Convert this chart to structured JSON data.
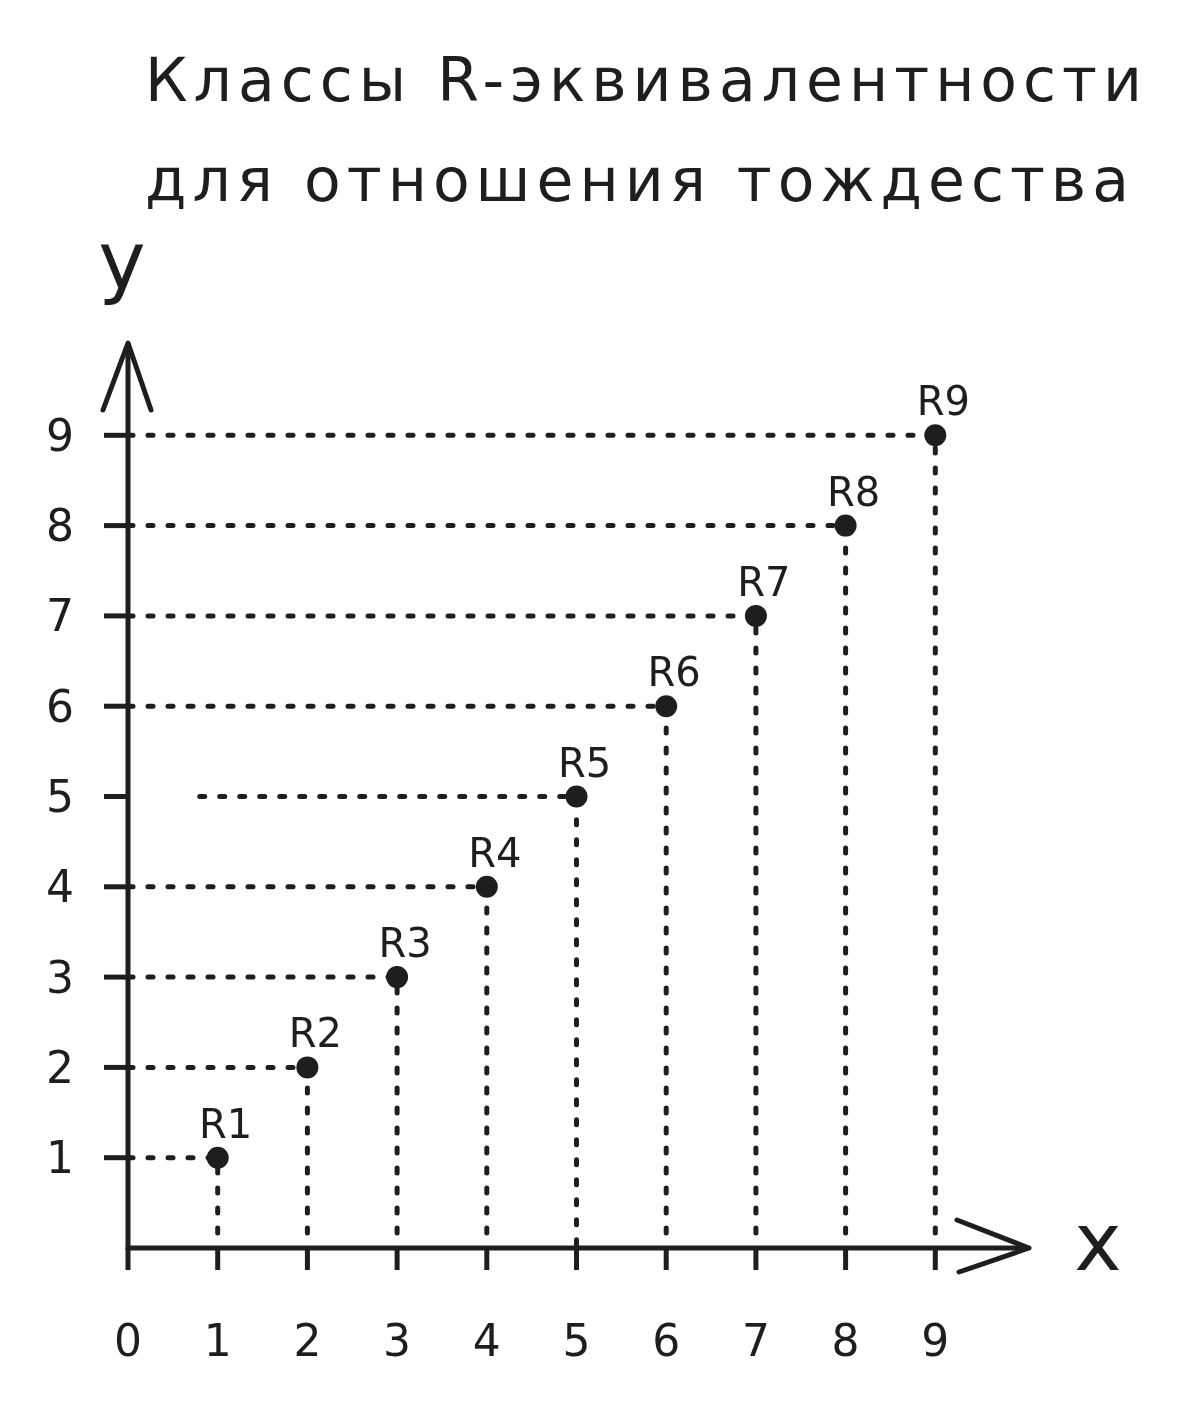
{
  "chart_data": {
    "type": "scatter",
    "title": "Классы R-эквивалентности для отношения тождества",
    "xlabel": "x",
    "ylabel": "y",
    "xlim": [
      0,
      10
    ],
    "ylim": [
      0,
      10
    ],
    "xticks": [
      0,
      1,
      2,
      3,
      4,
      5,
      6,
      7,
      8,
      9
    ],
    "yticks": [
      1,
      2,
      3,
      4,
      5,
      6,
      7,
      8,
      9
    ],
    "marker": "circle",
    "line_style": "dotted",
    "series": [
      {
        "color": "#1e1e1e",
        "x": [
          1,
          2,
          3,
          4,
          5,
          6,
          7,
          8,
          9
        ],
        "values": [
          1,
          2,
          3,
          4,
          5,
          6,
          7,
          8,
          9
        ]
      },
      {
        "type": "line",
        "marker": "none",
        "color": "#1e1e1e",
        "x": [
          0,
          1,
          1
        ],
        "values": [
          1,
          1,
          0
        ]
      },
      {
        "type": "line",
        "marker": "none",
        "color": "#1e1e1e",
        "x": [
          0,
          2,
          2
        ],
        "values": [
          2,
          2,
          0
        ]
      },
      {
        "type": "line",
        "marker": "none",
        "color": "#1e1e1e",
        "x": [
          0,
          3,
          3
        ],
        "values": [
          3,
          3,
          0
        ]
      },
      {
        "type": "line",
        "marker": "none",
        "color": "#1e1e1e",
        "x": [
          0,
          4,
          4
        ],
        "values": [
          4,
          4,
          0
        ]
      },
      {
        "type": "line",
        "marker": "none",
        "color": "#1e1e1e",
        "x": [
          0.8,
          5,
          5
        ],
        "values": [
          5,
          5,
          0
        ]
      },
      {
        "type": "line",
        "marker": "none",
        "color": "#1e1e1e",
        "x": [
          0,
          6,
          6
        ],
        "values": [
          6,
          6,
          0
        ]
      },
      {
        "type": "line",
        "marker": "none",
        "color": "#1e1e1e",
        "x": [
          0,
          7,
          7
        ],
        "values": [
          7,
          7,
          0
        ]
      },
      {
        "type": "line",
        "marker": "none",
        "color": "#1e1e1e",
        "x": [
          0,
          8,
          8
        ],
        "values": [
          8,
          8,
          0
        ]
      },
      {
        "type": "line",
        "marker": "none",
        "color": "#1e1e1e",
        "x": [
          0,
          9,
          9
        ],
        "values": [
          9,
          9,
          0
        ]
      }
    ],
    "annotations": [
      {
        "text": "R1",
        "x": 1,
        "y": 1
      },
      {
        "text": "R2",
        "x": 2,
        "y": 2
      },
      {
        "text": "R3",
        "x": 3,
        "y": 3
      },
      {
        "text": "R4",
        "x": 4,
        "y": 4
      },
      {
        "text": "R5",
        "x": 5,
        "y": 5
      },
      {
        "text": "R6",
        "x": 6,
        "y": 6
      },
      {
        "text": "R7",
        "x": 7,
        "y": 7
      },
      {
        "text": "R8",
        "x": 8,
        "y": 8
      },
      {
        "text": "R9",
        "x": 9,
        "y": 9
      }
    ]
  }
}
